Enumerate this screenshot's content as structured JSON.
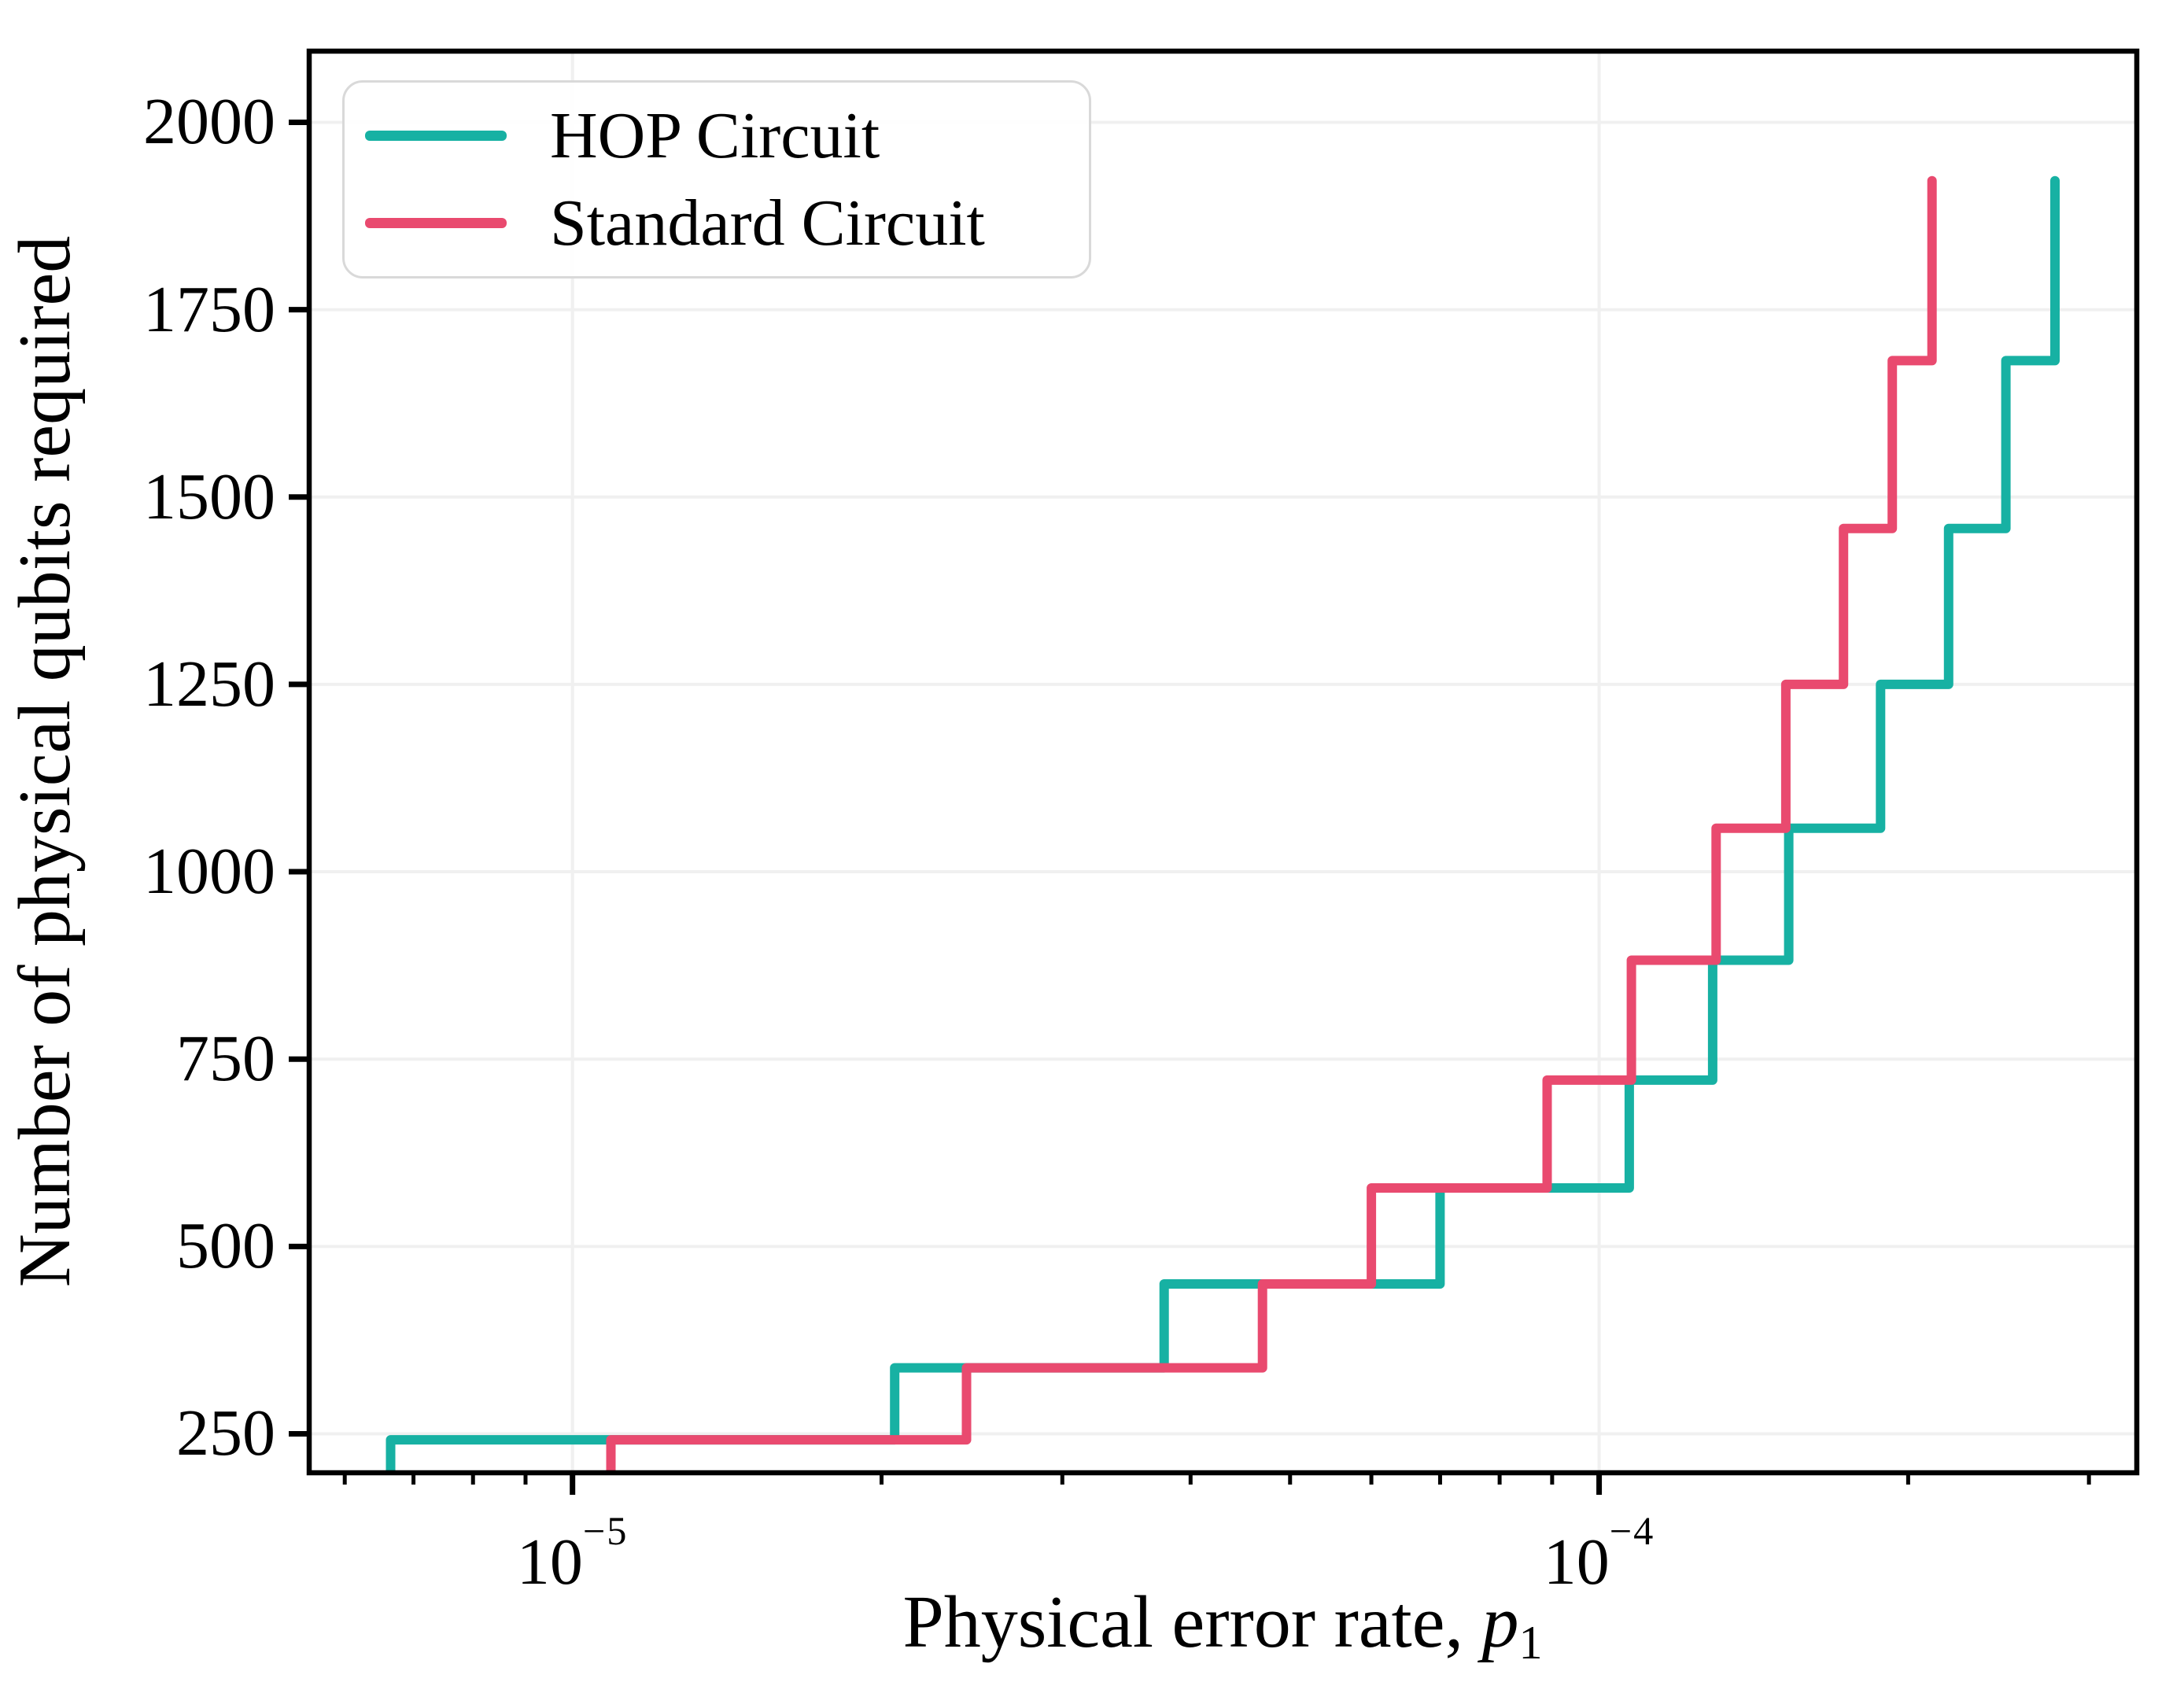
{
  "figure": {
    "background": "#ffffff",
    "y_axis_title": "Number of physical qubits required",
    "x_axis_title": {
      "prefix": "Physical error rate, ",
      "variable": "p",
      "subscript": "1"
    },
    "legend": [
      {
        "label": "HOP Circuit",
        "color": "#17b1a3"
      },
      {
        "label": "Standard Circuit",
        "color": "#e94a6f"
      }
    ]
  },
  "chart_data": {
    "type": "line",
    "variant": "step-post",
    "title": "",
    "xlabel": "Physical error rate, p1",
    "ylabel": "Number of physical qubits required",
    "x_axis": {
      "scale": "log",
      "min": 5.54e-06,
      "max": 0.000334,
      "major_ticks": [
        {
          "value": 1e-05,
          "base": "10",
          "exponent": "−5"
        },
        {
          "value": 0.0001,
          "base": "10",
          "exponent": "−4"
        }
      ],
      "minor_ticks": [
        6e-06,
        7e-06,
        8e-06,
        9e-06,
        2e-05,
        3e-05,
        4e-05,
        5e-05,
        6e-05,
        7e-05,
        8e-05,
        9e-05,
        0.0002,
        0.0003
      ]
    },
    "y_axis": {
      "scale": "linear",
      "min": 198,
      "max": 2095,
      "ticks": [
        250,
        500,
        750,
        1000,
        1250,
        1500,
        1750,
        2000
      ]
    },
    "grid": {
      "show": true,
      "color": "#f0f0f0",
      "width": 4
    },
    "qubit_levels": [
      242,
      338,
      450,
      578,
      722,
      882,
      1058,
      1250,
      1458,
      1682,
      1922
    ],
    "series": [
      {
        "name": "HOP Circuit",
        "color": "#17b1a3",
        "line_width": 12,
        "steps_p_qubits": [
          [
            6.65e-06,
            242
          ],
          [
            2.06e-05,
            338
          ],
          [
            3.77e-05,
            450
          ],
          [
            7e-05,
            578
          ],
          [
            0.000107,
            722
          ],
          [
            0.000129,
            882
          ],
          [
            0.000153,
            1058
          ],
          [
            0.000188,
            1250
          ],
          [
            0.000219,
            1458
          ],
          [
            0.000249,
            1682
          ],
          [
            0.000278,
            1922
          ]
        ]
      },
      {
        "name": "Standard Circuit",
        "color": "#e94a6f",
        "line_width": 12,
        "steps_p_qubits": [
          [
            1.09e-05,
            242
          ],
          [
            2.42e-05,
            338
          ],
          [
            4.7e-05,
            450
          ],
          [
            6e-05,
            578
          ],
          [
            8.9e-05,
            722
          ],
          [
            0.0001075,
            882
          ],
          [
            0.00013,
            1058
          ],
          [
            0.000152,
            1250
          ],
          [
            0.000173,
            1458
          ],
          [
            0.000193,
            1682
          ],
          [
            0.000211,
            1922
          ]
        ]
      }
    ],
    "legend_position": "upper left"
  }
}
